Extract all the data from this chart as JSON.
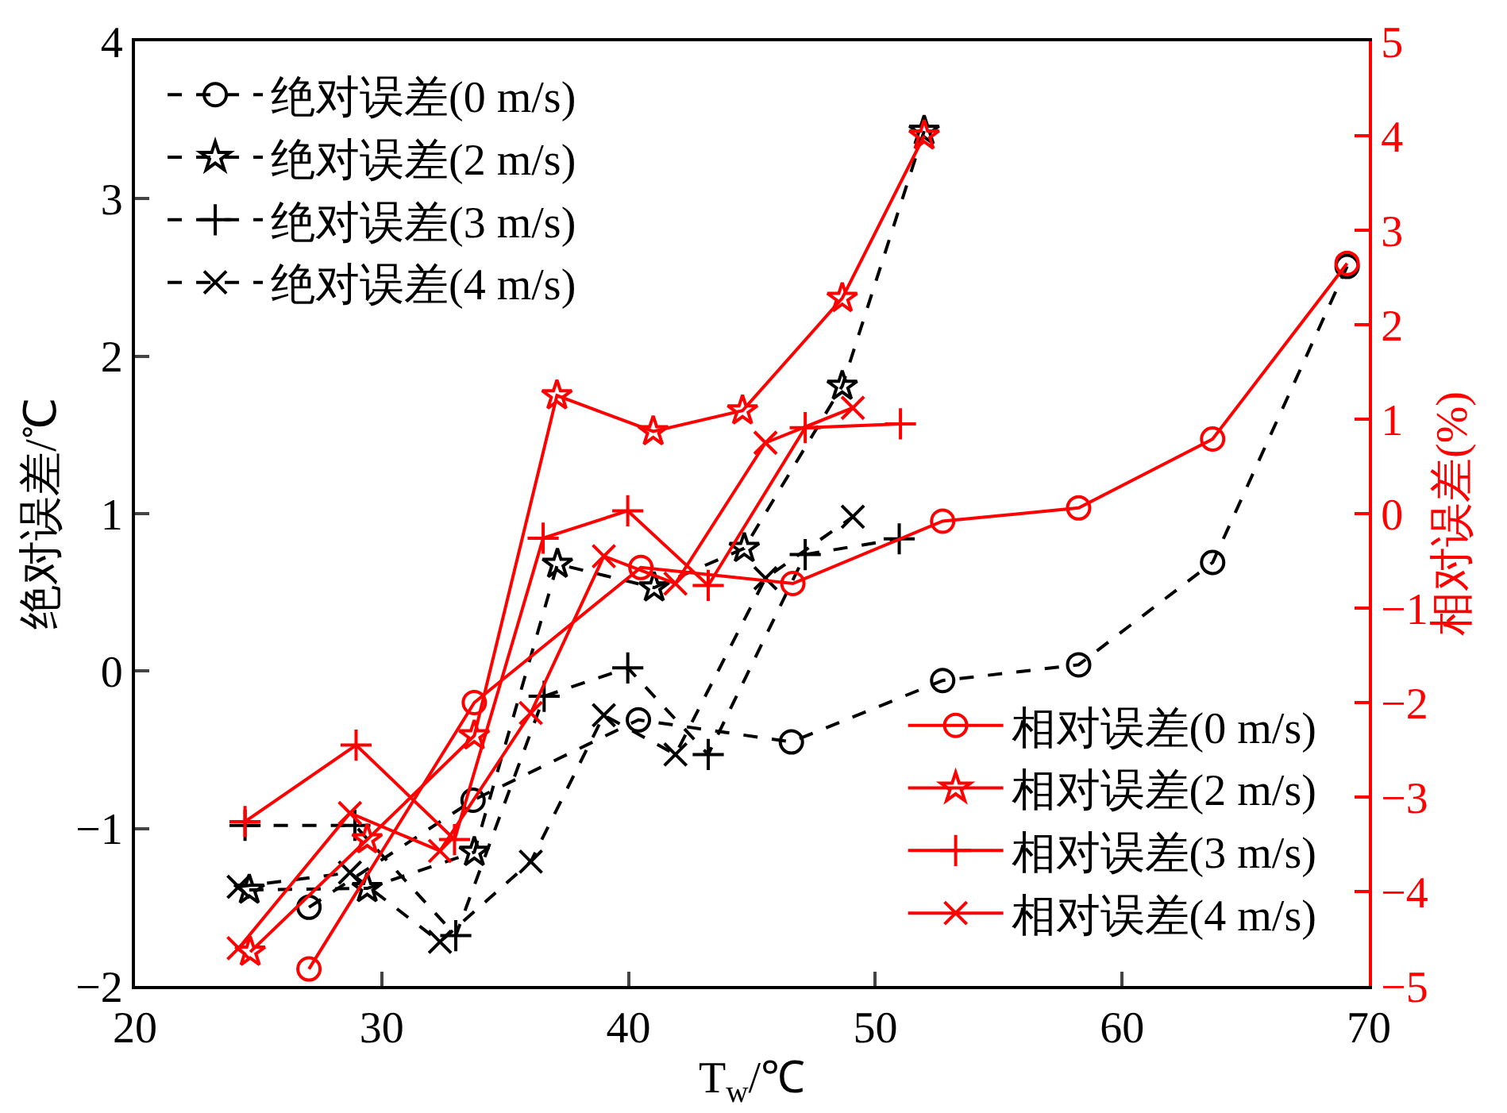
{
  "chart_data": {
    "type": "line",
    "xlabel": "T$_{w}$/℃",
    "ylabel": "绝对误差/℃",
    "y2label": "相对误差(%)",
    "xlim": [
      20,
      70
    ],
    "xticks": [
      20,
      30,
      40,
      50,
      60,
      70
    ],
    "ylim": [
      -2,
      4
    ],
    "yticks": [
      -2,
      -1,
      0,
      1,
      2,
      3,
      4
    ],
    "y2lim": [
      -5,
      5
    ],
    "y2ticks": [
      -5,
      -4,
      -3,
      -2,
      -1,
      0,
      1,
      2,
      3,
      4,
      5
    ],
    "grid": false,
    "legend": [
      "top left",
      "bottom right"
    ],
    "series": [
      {
        "name": "绝对误差(0 m/s)",
        "color": "#000000",
        "marker": "circle",
        "line_style": "dashed",
        "x": [
          27.05,
          33.7,
          40.4,
          46.6,
          52.73,
          58.24,
          63.67,
          69.12
        ],
        "values": [
          -1.5,
          -0.82,
          -0.31,
          -0.45,
          -0.06,
          0.04,
          0.69,
          2.57
        ]
      },
      {
        "name": "绝对误差(2 m/s)",
        "color": "#000000",
        "marker": "star",
        "line_style": "dashed",
        "x": [
          24.63,
          29.41,
          33.75,
          37.12,
          41.04,
          44.69,
          48.66,
          51.98
        ],
        "values": [
          -1.39,
          -1.38,
          -1.15,
          0.68,
          0.53,
          0.78,
          1.81,
          3.43
        ]
      },
      {
        "name": "绝对误差(3 m/s)",
        "color": "#000000",
        "marker": "cross",
        "line_style": "dashed",
        "x": [
          24.46,
          28.91,
          33.0,
          36.58,
          39.97,
          43.23,
          47.16,
          50.97
        ],
        "values": [
          -0.98,
          -0.98,
          -1.68,
          -0.16,
          0.02,
          -0.53,
          0.74,
          0.84
        ]
      },
      {
        "name": "绝对误差(4 m/s)",
        "color": "#000000",
        "marker": "x",
        "line_style": "dashed",
        "x": [
          24.2,
          28.71,
          32.36,
          36.04,
          39.0,
          41.9,
          45.55,
          49.09
        ],
        "values": [
          -1.37,
          -1.28,
          -1.72,
          -1.21,
          -0.28,
          -0.53,
          0.59,
          0.98
        ]
      },
      {
        "name": "相对误差(0 m/s)",
        "color": "#ff0000",
        "marker": "circle",
        "line_style": "solid",
        "axis": "y2",
        "x": [
          27.05,
          33.75,
          40.5,
          46.66,
          52.73,
          58.24,
          63.67,
          69.12
        ],
        "values": [
          -4.82,
          -2.0,
          -0.57,
          -0.74,
          -0.08,
          0.06,
          0.79,
          2.65
        ]
      },
      {
        "name": "相对误差(2 m/s)",
        "color": "#ff0000",
        "marker": "star",
        "line_style": "solid",
        "axis": "y2",
        "x": [
          24.67,
          29.41,
          33.75,
          37.1,
          41.0,
          44.62,
          48.66,
          51.98
        ],
        "values": [
          -4.64,
          -3.45,
          -2.35,
          1.25,
          0.87,
          1.09,
          2.28,
          4.0
        ]
      },
      {
        "name": "相对误差(3 m/s)",
        "color": "#ff0000",
        "marker": "cross",
        "line_style": "solid",
        "axis": "y2",
        "x": [
          24.46,
          28.96,
          32.95,
          36.54,
          39.97,
          43.23,
          47.16,
          51.02
        ],
        "values": [
          -3.26,
          -2.45,
          -3.45,
          -0.26,
          0.03,
          -0.76,
          0.91,
          0.95
        ]
      },
      {
        "name": "相对误差(4 m/s)",
        "color": "#ff0000",
        "marker": "x",
        "line_style": "solid",
        "axis": "y2",
        "x": [
          24.2,
          28.71,
          32.36,
          36.04,
          39.0,
          41.9,
          45.55,
          49.09
        ],
        "values": [
          -4.6,
          -3.17,
          -3.57,
          -2.11,
          -0.45,
          -0.74,
          0.75,
          1.12
        ]
      }
    ]
  }
}
